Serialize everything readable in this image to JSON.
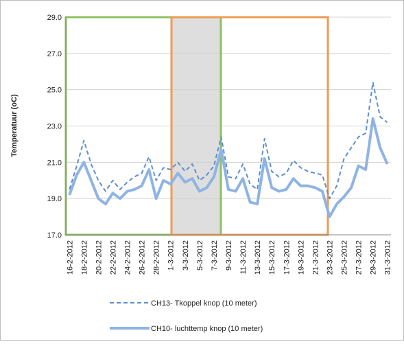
{
  "chart_data": {
    "type": "line",
    "y_label": "Temperatuur (oC)",
    "categories": [
      "16-2-2012",
      null,
      "18-2-2012",
      null,
      "20-2-2012",
      null,
      "22-2-2012",
      null,
      "24-2-2012",
      null,
      "26-2-2012",
      null,
      "28-2-2012",
      null,
      "1-3-2012",
      null,
      "3-3-2012",
      null,
      "5-3-2012",
      null,
      "7-3-2012",
      null,
      "9-3-2012",
      null,
      "11-3-2012",
      null,
      "13-3-2012",
      null,
      "15-3-2012",
      null,
      "17-3-2012",
      null,
      "19-3-2012",
      null,
      "21-3-2012",
      null,
      "23-3-2012",
      null,
      "25-3-2012",
      null,
      "27-3-2012",
      null,
      "29-3-2012",
      null,
      "31-3-2012"
    ],
    "series": [
      {
        "name": "CH13- Tkoppel knop (10 meter)",
        "color": "#5b8fd0",
        "dashed": true,
        "values": [
          19.5,
          20.8,
          22.2,
          20.9,
          20.0,
          19.4,
          20.0,
          19.5,
          19.9,
          20.2,
          20.4,
          21.3,
          20.0,
          20.7,
          20.6,
          21.0,
          20.5,
          20.9,
          20.0,
          20.3,
          20.8,
          22.4,
          20.2,
          20.1,
          20.9,
          19.8,
          19.5,
          22.3,
          20.5,
          20.2,
          20.4,
          21.1,
          20.7,
          20.5,
          20.4,
          20.3,
          19.0,
          19.7,
          21.2,
          21.8,
          22.4,
          22.6,
          25.4,
          23.5,
          23.2
        ]
      },
      {
        "name": "CH10- luchttemp knop (10 meter)",
        "color": "#8fb4e3",
        "dashed": false,
        "values": [
          19.2,
          20.3,
          21.0,
          20.0,
          19.0,
          18.7,
          19.3,
          19.0,
          19.4,
          19.5,
          19.7,
          20.6,
          19.0,
          20.0,
          19.8,
          20.4,
          19.9,
          20.1,
          19.4,
          19.6,
          20.2,
          21.7,
          19.5,
          19.4,
          20.1,
          18.8,
          18.7,
          21.2,
          19.6,
          19.4,
          19.5,
          20.1,
          19.7,
          19.7,
          19.6,
          19.4,
          18.0,
          18.7,
          19.1,
          19.6,
          20.8,
          20.6,
          23.4,
          21.8,
          20.9
        ]
      }
    ],
    "ylim": [
      17,
      29
    ],
    "yticks": [
      {
        "value": 17,
        "label": "17.0"
      },
      {
        "value": 19,
        "label": "19.0"
      },
      {
        "value": 21,
        "label": "21.0"
      },
      {
        "value": 23,
        "label": "23.0"
      },
      {
        "value": 25,
        "label": "25.0"
      },
      {
        "value": 27,
        "label": "27.0"
      },
      {
        "value": 29,
        "label": "29.0"
      }
    ],
    "grid": true
  }
}
